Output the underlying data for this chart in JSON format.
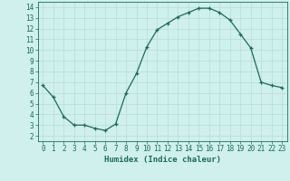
{
  "x": [
    0,
    1,
    2,
    3,
    4,
    5,
    6,
    7,
    8,
    9,
    10,
    11,
    12,
    13,
    14,
    15,
    16,
    17,
    18,
    19,
    20,
    21,
    22,
    23
  ],
  "y": [
    6.7,
    5.6,
    3.8,
    3.0,
    3.0,
    2.7,
    2.5,
    3.1,
    6.0,
    7.8,
    10.3,
    11.9,
    12.5,
    13.1,
    13.5,
    13.9,
    13.9,
    13.5,
    12.8,
    11.5,
    10.2,
    7.0,
    6.7,
    6.5
  ],
  "xlim": [
    -0.5,
    23.5
  ],
  "ylim": [
    1.5,
    14.5
  ],
  "xticks": [
    0,
    1,
    2,
    3,
    4,
    5,
    6,
    7,
    8,
    9,
    10,
    11,
    12,
    13,
    14,
    15,
    16,
    17,
    18,
    19,
    20,
    21,
    22,
    23
  ],
  "yticks": [
    2,
    3,
    4,
    5,
    6,
    7,
    8,
    9,
    10,
    11,
    12,
    13,
    14
  ],
  "xlabel": "Humidex (Indice chaleur)",
  "line_color": "#1a6b5a",
  "marker": "+",
  "bg_color": "#cff0ec",
  "grid_color": "#b8ddd8",
  "tick_color": "#1a6b5a",
  "label_color": "#1a6b5a",
  "marker_size": 3,
  "linewidth": 0.9
}
